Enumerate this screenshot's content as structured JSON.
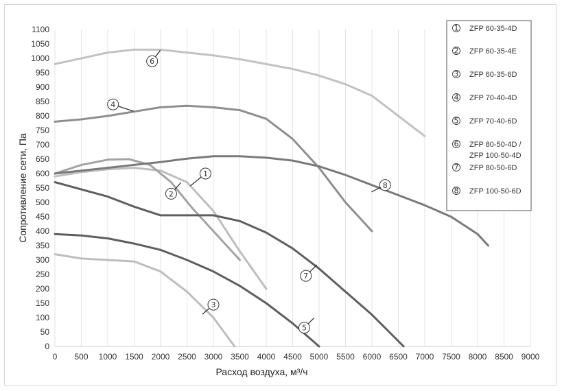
{
  "chart_data": {
    "type": "line",
    "title": "",
    "xlabel": "Расход воздуха, м³/ч",
    "ylabel": "Сопротивление сети, Па",
    "xlim": [
      0,
      9000
    ],
    "ylim": [
      0,
      1100
    ],
    "x_ticks": [
      "0",
      "500",
      "1000",
      "1500",
      "2000",
      "2500",
      "3000",
      "3500",
      "4000",
      "4500",
      "5000",
      "5500",
      "6000",
      "6500",
      "7000",
      "7500",
      "8000",
      "8500",
      "9000"
    ],
    "y_ticks": [
      "0",
      "50",
      "100",
      "150",
      "200",
      "250",
      "300",
      "350",
      "400",
      "450",
      "500",
      "550",
      "600",
      "650",
      "700",
      "750",
      "800",
      "850",
      "900",
      "950",
      "1000",
      "1050",
      "1100"
    ],
    "grid": "vertical",
    "legend_position": "top-right",
    "legend": [
      {
        "marker": "1",
        "label": "ZFP 60-35-4D"
      },
      {
        "marker": "2",
        "label": "ZFP 60-35-4E"
      },
      {
        "marker": "3",
        "label": "ZFP 60-35-6D"
      },
      {
        "marker": "4",
        "label": "ZFP 70-40-4D"
      },
      {
        "marker": "5",
        "label": "ZFP 70-40-6D"
      },
      {
        "marker": "6",
        "label": "ZFP 80-50-4D /\nZFP 100-50-4D"
      },
      {
        "marker": "7",
        "label": "ZFP 80-50-6D"
      },
      {
        "marker": "8",
        "label": "ZFP 100-50-6D"
      }
    ],
    "series": [
      {
        "marker": "1",
        "color": "#bdbdbd",
        "x": [
          0,
          500,
          1000,
          1500,
          2000,
          2500,
          3000,
          3500,
          4000
        ],
        "y": [
          590,
          605,
          615,
          620,
          610,
          570,
          470,
          330,
          200
        ]
      },
      {
        "marker": "2",
        "color": "#a3a3a3",
        "x": [
          0,
          500,
          1000,
          1400,
          1800,
          2200,
          2600,
          3000,
          3500
        ],
        "y": [
          600,
          630,
          648,
          650,
          630,
          570,
          480,
          400,
          300
        ]
      },
      {
        "marker": "3",
        "color": "#bdbdbd",
        "x": [
          0,
          500,
          1000,
          1500,
          2000,
          2500,
          3000,
          3400
        ],
        "y": [
          320,
          305,
          300,
          295,
          260,
          190,
          100,
          0
        ]
      },
      {
        "marker": "4",
        "color": "#8e8e8e",
        "x": [
          0,
          500,
          1000,
          1500,
          2000,
          2500,
          3000,
          3500,
          4000,
          4500,
          5000,
          5500,
          6000
        ],
        "y": [
          780,
          788,
          800,
          815,
          830,
          835,
          830,
          820,
          790,
          720,
          620,
          500,
          400
        ]
      },
      {
        "marker": "5",
        "color": "#5e5e5e",
        "x": [
          0,
          500,
          1000,
          1500,
          2000,
          2500,
          3000,
          3500,
          4000,
          4500,
          5000
        ],
        "y": [
          390,
          385,
          375,
          357,
          335,
          300,
          260,
          210,
          150,
          80,
          0
        ]
      },
      {
        "marker": "6",
        "color": "#c2c2c2",
        "x": [
          0,
          500,
          1000,
          1500,
          2000,
          2500,
          3000,
          3500,
          4000,
          4500,
          5000,
          5500,
          6000,
          6500,
          7000
        ],
        "y": [
          980,
          1000,
          1020,
          1030,
          1030,
          1020,
          1010,
          997,
          980,
          963,
          940,
          910,
          870,
          800,
          730
        ]
      },
      {
        "marker": "7",
        "color": "#5e5e5e",
        "x": [
          0,
          500,
          1000,
          1500,
          2000,
          2500,
          3000,
          3500,
          4000,
          4500,
          5000,
          5500,
          6000,
          6600
        ],
        "y": [
          570,
          545,
          520,
          485,
          455,
          455,
          455,
          435,
          395,
          340,
          270,
          190,
          110,
          0
        ]
      },
      {
        "marker": "8",
        "color": "#7a7a7a",
        "x": [
          0,
          500,
          1000,
          1500,
          2000,
          2500,
          3000,
          3500,
          4000,
          4500,
          5000,
          5500,
          6000,
          6500,
          7000,
          7500,
          8000,
          8200
        ],
        "y": [
          600,
          610,
          620,
          630,
          640,
          652,
          660,
          660,
          655,
          645,
          625,
          595,
          560,
          525,
          490,
          450,
          390,
          350
        ]
      }
    ],
    "callouts": [
      {
        "marker": "1",
        "x": 2850,
        "y": 600
      },
      {
        "marker": "2",
        "x": 2200,
        "y": 530
      },
      {
        "marker": "3",
        "x": 3000,
        "y": 145
      },
      {
        "marker": "4",
        "x": 1100,
        "y": 840
      },
      {
        "marker": "5",
        "x": 4720,
        "y": 65
      },
      {
        "marker": "6",
        "x": 1840,
        "y": 990
      },
      {
        "marker": "7",
        "x": 4750,
        "y": 245
      },
      {
        "marker": "8",
        "x": 6250,
        "y": 560
      }
    ]
  }
}
